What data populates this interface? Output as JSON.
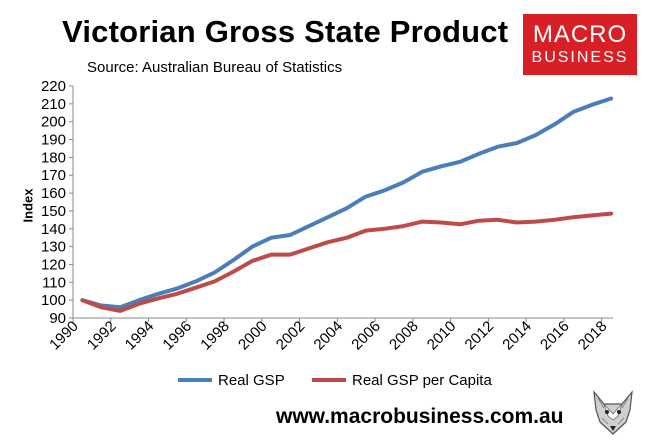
{
  "header": {
    "title": "Victorian Gross State Product",
    "subtitle": "Source: Australian Bureau of Statistics"
  },
  "logo": {
    "line1": "MACRO",
    "line2": "BUSINESS"
  },
  "footer": {
    "website": "www.macrobusiness.com.au"
  },
  "colors": {
    "gsp": "#4a7ebb",
    "gsp_per_capita": "#be4b48",
    "logo_bg": "#d91f26"
  },
  "chart_data": {
    "type": "line",
    "title": "Victorian Gross State Product",
    "ylabel": "Index",
    "xlabel": "",
    "ylim": [
      90,
      220
    ],
    "yticks": [
      90,
      100,
      110,
      120,
      130,
      140,
      150,
      160,
      170,
      180,
      190,
      200,
      210,
      220
    ],
    "xlim": [
      1990,
      2018.6
    ],
    "xticks": [
      1990,
      1992,
      1994,
      1996,
      1998,
      2000,
      2002,
      2004,
      2006,
      2008,
      2010,
      2012,
      2014,
      2016,
      2018
    ],
    "grid": false,
    "legend_position": "bottom",
    "x": [
      1990.5,
      1991.5,
      1992.5,
      1993.5,
      1994.5,
      1995.5,
      1996.5,
      1997.5,
      1998.5,
      1999.5,
      2000.5,
      2001.5,
      2002.5,
      2003.5,
      2004.5,
      2005.5,
      2006.5,
      2007.5,
      2008.5,
      2009.5,
      2010.5,
      2011.5,
      2012.5,
      2013.5,
      2014.5,
      2015.5,
      2016.5,
      2017.5,
      2018.5
    ],
    "series": [
      {
        "name": "Real GSP",
        "color": "#4a7ebb",
        "values": [
          100,
          97,
          96,
          100,
          103.5,
          106.5,
          110.5,
          115.5,
          122.5,
          130,
          135,
          136.5,
          141.5,
          146.5,
          151.5,
          158,
          161.5,
          166,
          172,
          175,
          177.5,
          182,
          186,
          188,
          192.5,
          198.5,
          205.5,
          209.5,
          213
        ]
      },
      {
        "name": "Real GSP per Capita",
        "color": "#be4b48",
        "values": [
          100,
          96,
          94,
          98,
          101,
          103.5,
          107,
          110.5,
          116,
          122,
          125.5,
          125.5,
          129,
          132.5,
          135,
          139,
          140,
          141.5,
          144,
          143.5,
          142.5,
          144.5,
          145,
          143.5,
          144,
          145,
          146.5,
          147.5,
          148.5
        ]
      }
    ]
  }
}
